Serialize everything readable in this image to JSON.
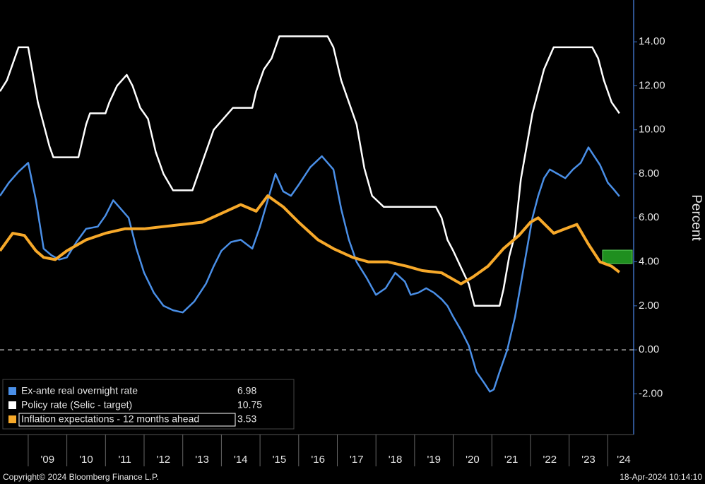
{
  "chart_data": {
    "type": "line",
    "y_label": "Percent",
    "copyright": "Copyright© 2024 Bloomberg Finance L.P.",
    "timestamp": "18-Apr-2024 10:14:10",
    "xlim": [
      2008.27,
      2024.67
    ],
    "ylim": [
      -3.85,
      15.9
    ],
    "xticks": [
      {
        "value": 2009,
        "label": "'09"
      },
      {
        "value": 2010,
        "label": "'10"
      },
      {
        "value": 2011,
        "label": "'11"
      },
      {
        "value": 2012,
        "label": "'12"
      },
      {
        "value": 2013,
        "label": "'13"
      },
      {
        "value": 2014,
        "label": "'14"
      },
      {
        "value": 2015,
        "label": "'15"
      },
      {
        "value": 2016,
        "label": "'16"
      },
      {
        "value": 2017,
        "label": "'17"
      },
      {
        "value": 2018,
        "label": "'18"
      },
      {
        "value": 2019,
        "label": "'19"
      },
      {
        "value": 2020,
        "label": "'20"
      },
      {
        "value": 2021,
        "label": "'21"
      },
      {
        "value": 2022,
        "label": "'22"
      },
      {
        "value": 2023,
        "label": "'23"
      },
      {
        "value": 2024,
        "label": "'24"
      }
    ],
    "yticks": [
      {
        "value": -2,
        "label": "-2.00"
      },
      {
        "value": 0,
        "label": "0.00"
      },
      {
        "value": 2,
        "label": "2.00"
      },
      {
        "value": 4,
        "label": "4.00"
      },
      {
        "value": 6,
        "label": "6.00"
      },
      {
        "value": 8,
        "label": "8.00"
      },
      {
        "value": 10,
        "label": "10.00"
      },
      {
        "value": 12,
        "label": "12.00"
      },
      {
        "value": 14,
        "label": "14.00"
      }
    ],
    "series": [
      {
        "name": "Ex-ante real overnight rate",
        "color": "#4a8fe7",
        "x": [
          2008.27,
          2008.5,
          2008.75,
          2009.0,
          2009.2,
          2009.4,
          2009.6,
          2009.8,
          2010.0,
          2010.25,
          2010.5,
          2010.8,
          2011.0,
          2011.2,
          2011.4,
          2011.6,
          2011.8,
          2012.0,
          2012.25,
          2012.5,
          2012.75,
          2013.0,
          2013.3,
          2013.6,
          2013.8,
          2014.0,
          2014.25,
          2014.5,
          2014.8,
          2015.0,
          2015.2,
          2015.4,
          2015.6,
          2015.8,
          2016.0,
          2016.3,
          2016.6,
          2016.9,
          2017.1,
          2017.3,
          2017.5,
          2017.75,
          2018.0,
          2018.25,
          2018.5,
          2018.75,
          2018.9,
          2019.1,
          2019.3,
          2019.5,
          2019.7,
          2019.85,
          2020.0,
          2020.2,
          2020.4,
          2020.6,
          2020.8,
          2020.95,
          2021.05,
          2021.2,
          2021.4,
          2021.6,
          2021.75,
          2021.9,
          2022.05,
          2022.2,
          2022.35,
          2022.5,
          2022.7,
          2022.9,
          2023.1,
          2023.3,
          2023.5,
          2023.65,
          2023.8,
          2024.0,
          2024.15,
          2024.3
        ],
        "values": [
          7.0,
          7.6,
          8.1,
          8.5,
          6.8,
          4.6,
          4.3,
          4.1,
          4.2,
          4.9,
          5.5,
          5.6,
          6.1,
          6.8,
          6.4,
          6.0,
          4.6,
          3.5,
          2.6,
          2.0,
          1.8,
          1.7,
          2.2,
          3.0,
          3.8,
          4.5,
          4.9,
          5.0,
          4.6,
          5.6,
          6.8,
          8.0,
          7.2,
          7.0,
          7.5,
          8.3,
          8.8,
          8.2,
          6.4,
          5.0,
          4.0,
          3.3,
          2.5,
          2.8,
          3.5,
          3.1,
          2.5,
          2.6,
          2.8,
          2.6,
          2.3,
          2.0,
          1.5,
          0.9,
          0.2,
          -1.0,
          -1.5,
          -1.9,
          -1.8,
          -1.0,
          0.0,
          1.5,
          3.0,
          4.5,
          6.0,
          7.0,
          7.8,
          8.2,
          8.0,
          7.8,
          8.2,
          8.5,
          9.2,
          8.8,
          8.4,
          7.6,
          7.3,
          6.98
        ]
      },
      {
        "name": "Policy rate (Selic - target)",
        "color": "#ffffff",
        "x": [
          2008.27,
          2008.45,
          2008.6,
          2008.75,
          2009.0,
          2009.1,
          2009.25,
          2009.4,
          2009.55,
          2009.65,
          2010.3,
          2010.4,
          2010.5,
          2010.6,
          2011.0,
          2011.1,
          2011.3,
          2011.55,
          2011.7,
          2011.9,
          2012.1,
          2012.3,
          2012.5,
          2012.75,
          2013.25,
          2013.4,
          2013.6,
          2013.8,
          2014.3,
          2014.8,
          2014.9,
          2015.1,
          2015.3,
          2015.5,
          2016.75,
          2016.9,
          2017.1,
          2017.3,
          2017.5,
          2017.7,
          2017.9,
          2018.2,
          2019.55,
          2019.7,
          2019.85,
          2020.0,
          2020.2,
          2020.4,
          2020.55,
          2021.2,
          2021.3,
          2021.45,
          2021.6,
          2021.75,
          2021.9,
          2022.05,
          2022.2,
          2022.35,
          2022.6,
          2023.6,
          2023.75,
          2023.9,
          2024.1,
          2024.3
        ],
        "values": [
          11.75,
          12.25,
          13.0,
          13.75,
          13.75,
          12.75,
          11.25,
          10.25,
          9.25,
          8.75,
          8.75,
          9.5,
          10.25,
          10.75,
          10.75,
          11.25,
          12.0,
          12.5,
          12.0,
          11.0,
          10.5,
          9.0,
          8.0,
          7.25,
          7.25,
          8.0,
          9.0,
          10.0,
          11.0,
          11.0,
          11.75,
          12.75,
          13.25,
          14.25,
          14.25,
          13.75,
          12.25,
          11.25,
          10.25,
          8.25,
          7.0,
          6.5,
          6.5,
          6.0,
          5.0,
          4.5,
          3.75,
          3.0,
          2.0,
          2.0,
          2.75,
          4.25,
          5.25,
          7.75,
          9.25,
          10.75,
          11.75,
          12.75,
          13.75,
          13.75,
          13.25,
          12.25,
          11.25,
          10.75
        ]
      },
      {
        "name": "Inflation expectations - 12 months ahead",
        "color": "#f7a92a",
        "x": [
          2008.27,
          2008.6,
          2008.9,
          2009.2,
          2009.4,
          2009.7,
          2010.0,
          2010.5,
          2011.0,
          2011.5,
          2012.0,
          2012.5,
          2013.0,
          2013.5,
          2014.0,
          2014.5,
          2014.9,
          2015.2,
          2015.6,
          2016.0,
          2016.5,
          2016.9,
          2017.4,
          2017.8,
          2018.3,
          2018.8,
          2019.2,
          2019.7,
          2020.2,
          2020.5,
          2020.9,
          2021.3,
          2021.7,
          2022.0,
          2022.2,
          2022.6,
          2022.9,
          2023.2,
          2023.5,
          2023.8,
          2024.1,
          2024.3
        ],
        "values": [
          4.5,
          5.3,
          5.2,
          4.5,
          4.2,
          4.1,
          4.5,
          5.0,
          5.3,
          5.5,
          5.5,
          5.6,
          5.7,
          5.8,
          6.2,
          6.6,
          6.3,
          7.0,
          6.5,
          5.8,
          5.0,
          4.6,
          4.2,
          4.0,
          4.0,
          3.8,
          3.6,
          3.5,
          3.0,
          3.3,
          3.8,
          4.6,
          5.2,
          5.8,
          6.0,
          5.3,
          5.5,
          5.7,
          4.8,
          4.0,
          3.8,
          3.53
        ]
      }
    ]
  }
}
